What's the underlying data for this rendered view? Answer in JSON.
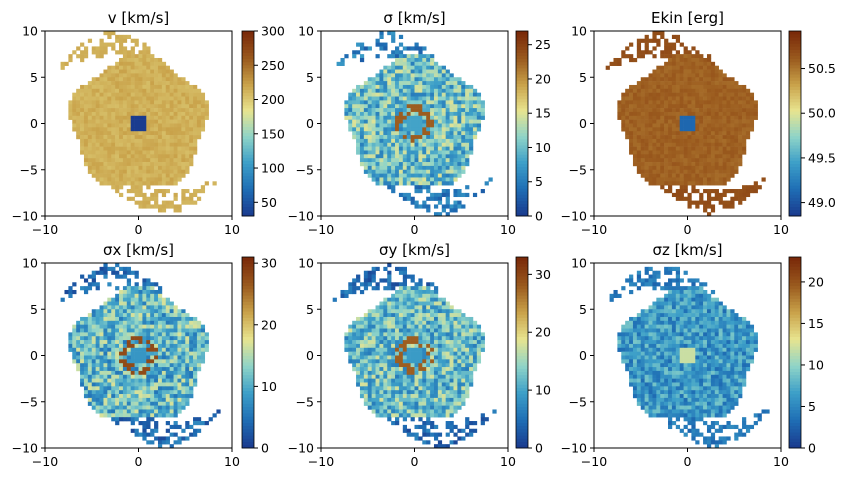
{
  "chart_data": [
    {
      "type": "heatmap",
      "title": "v [km/s]",
      "xlim": [
        -10,
        10
      ],
      "ylim": [
        -10,
        10
      ],
      "x_ticks": [
        "−10",
        "0",
        "10"
      ],
      "y_ticks": [
        "10",
        "5",
        "0",
        "−5",
        "−10"
      ],
      "colorbar": {
        "range": [
          30,
          300
        ],
        "ticks": [
          "300",
          "250",
          "200",
          "150",
          "100",
          "50"
        ],
        "tick_values": [
          300,
          250,
          200,
          150,
          100,
          50
        ]
      },
      "core_value": 30,
      "disk_value": 215,
      "noise": 8,
      "spiral_value": 215
    },
    {
      "type": "heatmap",
      "title": "σ [km/s]",
      "xlim": [
        -10,
        10
      ],
      "ylim": [
        -10,
        10
      ],
      "x_ticks": [
        "−10",
        "0",
        "10"
      ],
      "y_ticks": [
        "10",
        "5",
        "0",
        "−5",
        "−10"
      ],
      "colorbar": {
        "range": [
          0,
          27
        ],
        "ticks": [
          "25",
          "20",
          "15",
          "10",
          "5",
          "0"
        ],
        "tick_values": [
          25,
          20,
          15,
          10,
          5,
          0
        ]
      },
      "core_value": 8,
      "disk_value": 10,
      "noise": 5,
      "spiral_value": 5,
      "ring_value": 23
    },
    {
      "type": "heatmap",
      "title": "Ekin [erg]",
      "xlim": [
        -10,
        10
      ],
      "ylim": [
        -10,
        10
      ],
      "x_ticks": [
        "−10",
        "0",
        "10"
      ],
      "y_ticks": [
        "10",
        "5",
        "0",
        "−5",
        "−10"
      ],
      "colorbar": {
        "range": [
          48.85,
          50.92
        ],
        "ticks": [
          "50.5",
          "50.0",
          "49.5",
          "49.0"
        ],
        "tick_values": [
          50.5,
          50.0,
          49.5,
          49.0
        ]
      },
      "core_value": 49.1,
      "disk_value": 50.6,
      "noise": 0.05,
      "spiral_value": 50.7
    },
    {
      "type": "heatmap",
      "title": "σx [km/s]",
      "xlim": [
        -10,
        10
      ],
      "ylim": [
        -10,
        10
      ],
      "x_ticks": [
        "−10",
        "0",
        "10"
      ],
      "y_ticks": [
        "10",
        "5",
        "0",
        "−5",
        "−10"
      ],
      "colorbar": {
        "range": [
          0,
          31
        ],
        "ticks": [
          "30",
          "20",
          "10",
          "0"
        ],
        "tick_values": [
          30,
          20,
          10,
          0
        ]
      },
      "core_value": 8,
      "disk_value": 11,
      "noise": 6,
      "spiral_value": 4,
      "ring_value": 28
    },
    {
      "type": "heatmap",
      "title": "σy [km/s]",
      "xlim": [
        -10,
        10
      ],
      "ylim": [
        -10,
        10
      ],
      "x_ticks": [
        "−10",
        "0",
        "10"
      ],
      "y_ticks": [
        "10",
        "5",
        "0",
        "−5",
        "−10"
      ],
      "colorbar": {
        "range": [
          0,
          33
        ],
        "ticks": [
          "30",
          "20",
          "10",
          "0"
        ],
        "tick_values": [
          30,
          20,
          10,
          0
        ]
      },
      "core_value": 9,
      "disk_value": 12,
      "noise": 6,
      "spiral_value": 4,
      "ring_value": 28
    },
    {
      "type": "heatmap",
      "title": "σz [km/s]",
      "xlim": [
        -10,
        10
      ],
      "ylim": [
        -10,
        10
      ],
      "x_ticks": [
        "−10",
        "0",
        "10"
      ],
      "y_ticks": [
        "10",
        "5",
        "0",
        "−5",
        "−10"
      ],
      "colorbar": {
        "range": [
          0,
          23
        ],
        "ticks": [
          "20",
          "15",
          "10",
          "5",
          "0"
        ],
        "tick_values": [
          20,
          15,
          10,
          5,
          0
        ]
      },
      "core_value": 12,
      "disk_value": 6,
      "noise": 3,
      "spiral_value": 4
    }
  ],
  "colormap": [
    "#1a3c8f",
    "#1f6fb5",
    "#3d9fc8",
    "#8fd4c8",
    "#e8e48f",
    "#c9a24a",
    "#9a5a1e",
    "#7a2a0a"
  ]
}
